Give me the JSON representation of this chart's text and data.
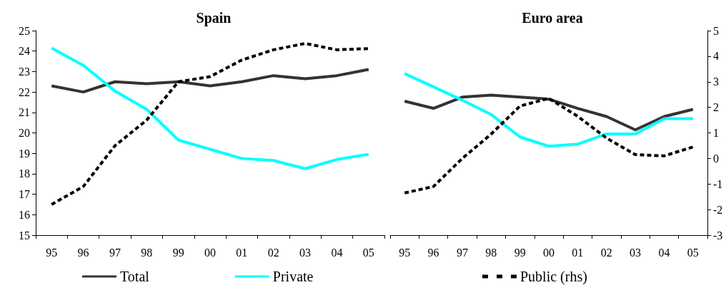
{
  "chart_data": [
    {
      "type": "line",
      "title": "Spain",
      "categories": [
        "95",
        "96",
        "97",
        "98",
        "99",
        "00",
        "01",
        "02",
        "03",
        "04",
        "05"
      ],
      "ylim": [
        15,
        25
      ],
      "yticks": [
        15,
        16,
        17,
        18,
        19,
        20,
        21,
        22,
        23,
        24,
        25
      ],
      "y2lim": [
        -3,
        5
      ],
      "tick_labels": "xy",
      "grid": false,
      "legend": "bottom",
      "marker": "none",
      "series": [
        {
          "name": "Total",
          "color": "#333333",
          "values": [
            22.3,
            22.0,
            22.5,
            22.4,
            22.5,
            22.3,
            22.5,
            22.8,
            22.65,
            22.8,
            23.1
          ]
        },
        {
          "name": "Private",
          "color": "#00ffff",
          "values": [
            24.15,
            23.3,
            22.05,
            21.15,
            19.65,
            19.2,
            18.75,
            18.65,
            18.25,
            18.7,
            18.95
          ]
        },
        {
          "color": "#000000",
          "axis": "y2",
          "line_style": "dashed",
          "values": [
            -1.8,
            -1.1,
            0.5,
            1.5,
            3.0,
            3.2,
            3.85,
            4.25,
            4.5,
            4.25,
            4.3
          ]
        }
      ]
    },
    {
      "type": "line",
      "title": "Euro area",
      "categories": [
        "95",
        "96",
        "97",
        "98",
        "99",
        "00",
        "01",
        "02",
        "03",
        "04",
        "05"
      ],
      "ylim": [
        15,
        25
      ],
      "y2lim": [
        -3,
        5
      ],
      "y2ticks": [
        -3,
        -2,
        -1,
        0,
        1,
        2,
        3,
        4,
        5
      ],
      "tick_labels": "xy2",
      "grid": false,
      "legend": "bottom",
      "marker": "none",
      "series": [
        {
          "color": "#333333",
          "values": [
            21.55,
            21.2,
            21.75,
            21.85,
            21.75,
            21.65,
            21.2,
            20.8,
            20.15,
            20.8,
            21.15
          ]
        },
        {
          "color": "#00ffff",
          "values": [
            22.9,
            22.25,
            21.6,
            20.9,
            19.8,
            19.35,
            19.45,
            19.95,
            19.95,
            20.7,
            20.7
          ]
        },
        {
          "name": "Public (rhs)",
          "color": "#000000",
          "axis": "y2",
          "line_style": "dashed",
          "values": [
            -1.35,
            -1.1,
            0.0,
            0.95,
            2.05,
            2.35,
            1.65,
            0.8,
            0.15,
            0.1,
            0.45
          ]
        }
      ]
    }
  ]
}
